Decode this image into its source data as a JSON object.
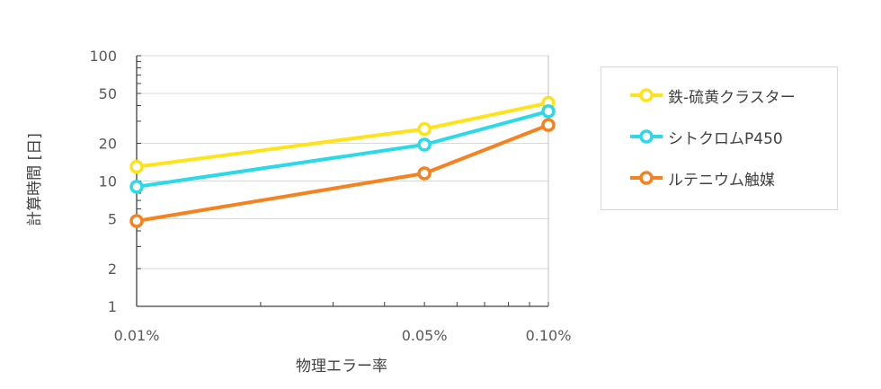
{
  "chart_data": {
    "type": "line",
    "xlabel": "物理エラー率",
    "ylabel": "計算時間 [日]",
    "x_scale": "log",
    "y_scale": "log",
    "xlim": [
      0.01,
      0.1
    ],
    "ylim": [
      1,
      100
    ],
    "x": [
      0.01,
      0.05,
      0.1
    ],
    "x_tick_labels": [
      "0.01%",
      "0.05%",
      "0.10%"
    ],
    "y_ticks": [
      1,
      2,
      5,
      10,
      20,
      50,
      100
    ],
    "y_tick_labels": [
      "1",
      "2",
      "5",
      "10",
      "20",
      "50",
      "100"
    ],
    "grid": "horizontal",
    "legend_position": "right",
    "series": [
      {
        "name": "鉄-硫黄クラスター",
        "color": "#FFE31A",
        "values": [
          13,
          26,
          42
        ]
      },
      {
        "name": "シトクロムP450",
        "color": "#2BD9E8",
        "values": [
          9,
          19.5,
          36
        ]
      },
      {
        "name": "ルテニウム触媒",
        "color": "#F5821F",
        "values": [
          4.8,
          11.5,
          28
        ]
      }
    ]
  }
}
